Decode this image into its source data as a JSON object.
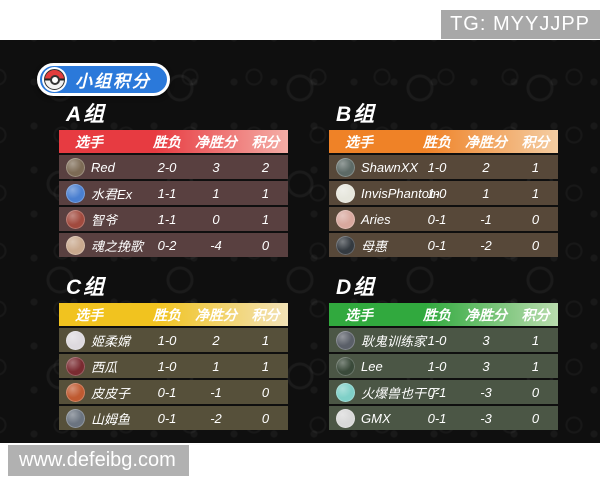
{
  "page": {
    "tg_badge": "TG: MYYJJPP",
    "watermark": "www.defeibg.com"
  },
  "title": {
    "text": "小组积分",
    "pill_color": "#2b79da"
  },
  "table_headers": {
    "player": "选手",
    "record": "胜负",
    "net": "净胜分",
    "points": "积分"
  },
  "groups": [
    {
      "name": "A组",
      "accent": "#e73b41",
      "accent_light": "#f4ada6",
      "row_bg": "#594040",
      "players": [
        {
          "name": "Red",
          "record": "2-0",
          "net": "3",
          "points": "2",
          "avatar_color": "#7d6b55"
        },
        {
          "name": "水君Ex",
          "record": "1-1",
          "net": "1",
          "points": "1",
          "avatar_color": "#4a7fd0"
        },
        {
          "name": "智爷",
          "record": "1-1",
          "net": "0",
          "points": "1",
          "avatar_color": "#a14a3e"
        },
        {
          "name": "魂之挽歌",
          "record": "0-2",
          "net": "-4",
          "points": "0",
          "avatar_color": "#c9a98e"
        }
      ]
    },
    {
      "name": "B组",
      "accent": "#ef8227",
      "accent_light": "#f4cda2",
      "row_bg": "#574839",
      "players": [
        {
          "name": "ShawnXX",
          "record": "1-0",
          "net": "2",
          "points": "1",
          "avatar_color": "#5d6a66"
        },
        {
          "name": "InvisPhantom",
          "record": "1-0",
          "net": "1",
          "points": "1",
          "avatar_color": "#e6e6dc"
        },
        {
          "name": "Aries",
          "record": "0-1",
          "net": "-1",
          "points": "0",
          "avatar_color": "#d8a89e"
        },
        {
          "name": "母惠",
          "record": "0-1",
          "net": "-2",
          "points": "0",
          "avatar_color": "#343a40"
        }
      ]
    },
    {
      "name": "C组",
      "accent": "#f1c31f",
      "accent_light": "#f2e2b6",
      "row_bg": "#56503a",
      "players": [
        {
          "name": "姬柔嫦",
          "record": "1-0",
          "net": "2",
          "points": "1",
          "avatar_color": "#ddd9de"
        },
        {
          "name": "西瓜",
          "record": "1-0",
          "net": "1",
          "points": "1",
          "avatar_color": "#7a2b31"
        },
        {
          "name": "皮皮子",
          "record": "0-1",
          "net": "-1",
          "points": "0",
          "avatar_color": "#bf5a31"
        },
        {
          "name": "山姆鱼",
          "record": "0-1",
          "net": "-2",
          "points": "0",
          "avatar_color": "#6b7480"
        }
      ]
    },
    {
      "name": "D组",
      "accent": "#31a93e",
      "accent_light": "#b9dcae",
      "row_bg": "#4b5645",
      "players": [
        {
          "name": "耿鬼训练家",
          "record": "1-0",
          "net": "3",
          "points": "1",
          "avatar_color": "#5a5f68"
        },
        {
          "name": "Lee",
          "record": "1-0",
          "net": "3",
          "points": "1",
          "avatar_color": "#3a4a3a"
        },
        {
          "name": "火爆兽也干了",
          "record": "0-1",
          "net": "-3",
          "points": "0",
          "avatar_color": "#7fd0c8"
        },
        {
          "name": "GMX",
          "record": "0-1",
          "net": "-3",
          "points": "0",
          "avatar_color": "#d8d8d8"
        }
      ]
    }
  ]
}
